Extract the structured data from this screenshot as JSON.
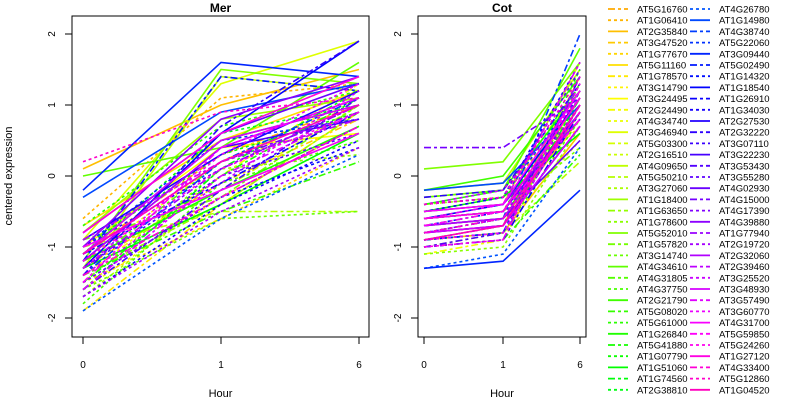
{
  "chart_data": {
    "type": "line",
    "ylabel": "centered expression",
    "ylim": [
      -2.2,
      2.3
    ],
    "yticks": [
      -2,
      -1,
      0,
      1,
      2
    ],
    "grid": false,
    "legend_placement": "right",
    "panels": [
      {
        "title": "Mer",
        "xlabel": "Hour",
        "categories": [
          "0",
          "1",
          "6"
        ]
      },
      {
        "title": "Cot",
        "xlabel": "Hour",
        "categories": [
          "0",
          "1",
          "6"
        ]
      }
    ],
    "series": [
      {
        "name": "AT5G16760",
        "mer": [
          -1.1,
          0.3,
          1.0
        ],
        "cot": [
          -0.8,
          -0.6,
          0.9
        ]
      },
      {
        "name": "AT1G06410",
        "mer": [
          -0.6,
          1.1,
          1.3
        ],
        "cot": [
          -0.5,
          -0.3,
          1.1
        ]
      },
      {
        "name": "AT2G35840",
        "mer": [
          0.1,
          1.0,
          1.5
        ],
        "cot": [
          -0.9,
          -0.8,
          0.6
        ]
      },
      {
        "name": "AT3G47520",
        "mer": [
          -1.3,
          -0.1,
          0.8
        ],
        "cot": [
          -1.0,
          -0.9,
          1.2
        ]
      },
      {
        "name": "AT1G77670",
        "mer": [
          -1.5,
          -0.6,
          0.4
        ],
        "cot": [
          -0.6,
          -0.5,
          1.3
        ]
      },
      {
        "name": "AT5G11160",
        "mer": [
          -0.7,
          0.5,
          1.2
        ],
        "cot": [
          -0.7,
          -0.6,
          0.8
        ]
      },
      {
        "name": "AT1G78570",
        "mer": [
          -1.9,
          -0.4,
          0.9
        ],
        "cot": [
          -0.9,
          -0.7,
          1.0
        ]
      },
      {
        "name": "AT3G14790",
        "mer": [
          -1.2,
          0.2,
          1.1
        ],
        "cot": [
          -0.4,
          -0.3,
          0.7
        ]
      },
      {
        "name": "AT3G24495",
        "mer": [
          -1.0,
          0.4,
          0.6
        ],
        "cot": [
          -0.8,
          -0.7,
          1.4
        ]
      },
      {
        "name": "AT2G24490",
        "mer": [
          -1.4,
          0.0,
          1.3
        ],
        "cot": [
          -1.1,
          -0.9,
          0.9
        ]
      },
      {
        "name": "AT4G34740",
        "mer": [
          -1.6,
          -0.3,
          0.7
        ],
        "cot": [
          -0.3,
          -0.2,
          1.0
        ]
      },
      {
        "name": "AT3G46940",
        "mer": [
          -0.9,
          1.3,
          1.9
        ],
        "cot": [
          -0.5,
          -0.4,
          1.6
        ]
      },
      {
        "name": "AT5G03300",
        "mer": [
          -1.2,
          -0.2,
          1.0
        ],
        "cot": [
          -0.7,
          -0.6,
          1.1
        ]
      },
      {
        "name": "AT2G16510",
        "mer": [
          -1.1,
          0.6,
          1.4
        ],
        "cot": [
          -0.8,
          -0.7,
          0.5
        ]
      },
      {
        "name": "AT4G09650",
        "mer": [
          -1.3,
          1.4,
          1.2
        ],
        "cot": [
          -0.2,
          -0.1,
          1.5
        ]
      },
      {
        "name": "AT5G50210",
        "mer": [
          -1.0,
          -0.5,
          -0.5
        ],
        "cot": [
          -1.0,
          -0.8,
          0.2
        ]
      },
      {
        "name": "AT3G27060",
        "mer": [
          -1.7,
          -0.2,
          0.6
        ],
        "cot": [
          -0.6,
          -0.4,
          1.2
        ]
      },
      {
        "name": "AT1G18400",
        "mer": [
          -0.8,
          0.8,
          1.1
        ],
        "cot": [
          -0.9,
          -0.7,
          0.9
        ]
      },
      {
        "name": "AT1G63650",
        "mer": [
          -1.4,
          -0.4,
          0.9
        ],
        "cot": [
          -0.4,
          -0.3,
          1.3
        ]
      },
      {
        "name": "AT1G78600",
        "mer": [
          -1.5,
          0.1,
          0.3
        ],
        "cot": [
          -1.1,
          -1.0,
          0.7
        ]
      },
      {
        "name": "AT5G52010",
        "mer": [
          -1.2,
          1.5,
          1.3
        ],
        "cot": [
          0.1,
          0.2,
          1.6
        ]
      },
      {
        "name": "AT1G57820",
        "mer": [
          -0.9,
          -0.3,
          1.0
        ],
        "cot": [
          -0.7,
          -0.5,
          0.4
        ]
      },
      {
        "name": "AT3G14740",
        "mer": [
          -1.6,
          -0.6,
          -0.5
        ],
        "cot": [
          -0.5,
          -0.4,
          1.0
        ]
      },
      {
        "name": "AT4G34610",
        "mer": [
          0.0,
          0.4,
          1.6
        ],
        "cot": [
          -0.3,
          -0.2,
          1.8
        ]
      },
      {
        "name": "AT4G31805",
        "mer": [
          -1.3,
          0.2,
          0.8
        ],
        "cot": [
          -0.8,
          -0.6,
          1.1
        ]
      },
      {
        "name": "AT4G37750",
        "mer": [
          -1.8,
          -0.1,
          0.5
        ],
        "cot": [
          -0.9,
          -0.8,
          0.8
        ]
      },
      {
        "name": "AT2G21790",
        "mer": [
          -1.1,
          0.5,
          1.0
        ],
        "cot": [
          -0.2,
          0.0,
          1.4
        ]
      },
      {
        "name": "AT5G08020",
        "mer": [
          -1.4,
          -0.5,
          0.2
        ],
        "cot": [
          -1.0,
          -0.9,
          0.3
        ]
      },
      {
        "name": "AT5G61000",
        "mer": [
          -0.7,
          0.7,
          1.2
        ],
        "cot": [
          -0.6,
          -0.5,
          0.9
        ]
      },
      {
        "name": "AT1G26840",
        "mer": [
          -1.2,
          -0.2,
          0.7
        ],
        "cot": [
          -0.4,
          -0.2,
          1.2
        ]
      },
      {
        "name": "AT5G41880",
        "mer": [
          -1.5,
          0.0,
          1.1
        ],
        "cot": [
          -0.7,
          -0.6,
          1.0
        ]
      },
      {
        "name": "AT1G07790",
        "mer": [
          -1.0,
          0.3,
          0.9
        ],
        "cot": [
          -0.8,
          -0.7,
          1.5
        ]
      },
      {
        "name": "AT1G51060",
        "mer": [
          -1.3,
          -0.4,
          0.6
        ],
        "cot": [
          -0.5,
          -0.3,
          0.6
        ]
      },
      {
        "name": "AT1G74560",
        "mer": [
          -1.6,
          0.1,
          1.2
        ],
        "cot": [
          -0.9,
          -0.8,
          1.1
        ]
      },
      {
        "name": "AT2G38810",
        "mer": [
          -1.1,
          0.6,
          1.0
        ],
        "cot": [
          -0.6,
          -0.5,
          1.3
        ]
      },
      {
        "name": "AT4G26780",
        "mer": [
          -1.9,
          -0.6,
          0.3
        ],
        "cot": [
          -1.3,
          -1.1,
          0.4
        ]
      },
      {
        "name": "AT1G14980",
        "mer": [
          -0.3,
          0.9,
          1.3
        ],
        "cot": [
          -0.2,
          -0.1,
          1.0
        ]
      },
      {
        "name": "AT4G38740",
        "mer": [
          -1.4,
          0.2,
          1.1
        ],
        "cot": [
          -0.8,
          -0.6,
          2.0
        ]
      },
      {
        "name": "AT5G22060",
        "mer": [
          -1.0,
          0.5,
          0.8
        ],
        "cot": [
          -0.4,
          -0.3,
          1.2
        ]
      },
      {
        "name": "AT3G09440",
        "mer": [
          -0.2,
          1.6,
          1.4
        ],
        "cot": [
          -1.3,
          -1.2,
          -0.2
        ]
      },
      {
        "name": "AT5G02490",
        "mer": [
          -1.2,
          1.4,
          1.2
        ],
        "cot": [
          -0.9,
          -0.8,
          1.4
        ]
      },
      {
        "name": "AT1G14320",
        "mer": [
          -1.5,
          -0.3,
          0.4
        ],
        "cot": [
          -0.7,
          -0.5,
          0.8
        ]
      },
      {
        "name": "AT1G18540",
        "mer": [
          -1.3,
          0.6,
          1.9
        ],
        "cot": [
          -0.6,
          -0.4,
          1.1
        ]
      },
      {
        "name": "AT1G26910",
        "mer": [
          -1.1,
          -0.1,
          0.9
        ],
        "cot": [
          -1.0,
          -0.9,
          0.9
        ]
      },
      {
        "name": "AT1G34030",
        "mer": [
          -1.7,
          -0.4,
          0.5
        ],
        "cot": [
          -0.5,
          -0.3,
          1.6
        ]
      },
      {
        "name": "AT2G27530",
        "mer": [
          -0.9,
          0.3,
          1.2
        ],
        "cot": [
          -0.8,
          -0.7,
          0.7
        ]
      },
      {
        "name": "AT2G32220",
        "mer": [
          -1.4,
          0.7,
          1.9
        ],
        "cot": [
          -0.3,
          -0.2,
          1.3
        ]
      },
      {
        "name": "AT3G07110",
        "mer": [
          -1.0,
          0.1,
          1.0
        ],
        "cot": [
          -0.9,
          -0.8,
          1.2
        ]
      },
      {
        "name": "AT3G22230",
        "mer": [
          -1.2,
          0.4,
          0.8
        ],
        "cot": [
          -0.6,
          -0.5,
          0.9
        ]
      },
      {
        "name": "AT3G53430",
        "mer": [
          -1.6,
          -0.2,
          1.1
        ],
        "cot": [
          -1.0,
          -0.8,
          1.0
        ]
      },
      {
        "name": "AT3G55280",
        "mer": [
          -1.3,
          0.0,
          0.6
        ],
        "cot": [
          -0.4,
          -0.3,
          1.5
        ]
      },
      {
        "name": "AT4G02930",
        "mer": [
          -0.8,
          0.6,
          1.3
        ],
        "cot": [
          -0.7,
          -0.6,
          0.5
        ]
      },
      {
        "name": "AT4G15000",
        "mer": [
          -1.1,
          0.2,
          0.9
        ],
        "cot": [
          0.4,
          0.4,
          1.1
        ]
      },
      {
        "name": "AT4G17390",
        "mer": [
          -1.5,
          -0.3,
          0.7
        ],
        "cot": [
          -0.8,
          -0.6,
          1.2
        ]
      },
      {
        "name": "AT4G39880",
        "mer": [
          -1.0,
          0.8,
          1.4
        ],
        "cot": [
          -0.5,
          -0.4,
          0.8
        ]
      },
      {
        "name": "AT1G77940",
        "mer": [
          -1.3,
          0.1,
          1.0
        ],
        "cot": [
          -0.9,
          -0.7,
          1.3
        ]
      },
      {
        "name": "AT2G19720",
        "mer": [
          -1.7,
          -0.5,
          0.4
        ],
        "cot": [
          -0.6,
          -0.5,
          1.0
        ]
      },
      {
        "name": "AT2G32060",
        "mer": [
          -1.2,
          0.4,
          1.1
        ],
        "cot": [
          -0.7,
          -0.6,
          0.9
        ]
      },
      {
        "name": "AT2G39460",
        "mer": [
          -0.9,
          0.2,
          0.8
        ],
        "cot": [
          -1.0,
          -0.9,
          1.4
        ]
      },
      {
        "name": "AT3G25520",
        "mer": [
          -1.4,
          -0.1,
          1.2
        ],
        "cot": [
          -0.4,
          -0.2,
          1.1
        ]
      },
      {
        "name": "AT3G48930",
        "mer": [
          -1.1,
          0.5,
          1.0
        ],
        "cot": [
          -0.8,
          -0.7,
          0.7
        ]
      },
      {
        "name": "AT3G57490",
        "mer": [
          -1.6,
          0.0,
          0.9
        ],
        "cot": [
          -0.6,
          -0.4,
          1.6
        ]
      },
      {
        "name": "AT3G60770",
        "mer": [
          -1.3,
          0.3,
          1.3
        ],
        "cot": [
          -0.9,
          -0.8,
          1.0
        ]
      },
      {
        "name": "AT4G31700",
        "mer": [
          -1.0,
          -0.2,
          0.6
        ],
        "cot": [
          -0.5,
          -0.4,
          1.2
        ]
      },
      {
        "name": "AT5G59850",
        "mer": [
          -1.5,
          0.4,
          1.1
        ],
        "cot": [
          -0.7,
          -0.5,
          0.8
        ]
      },
      {
        "name": "AT5G24260",
        "mer": [
          -1.2,
          0.1,
          0.9
        ],
        "cot": [
          -1.0,
          -0.9,
          1.3
        ]
      },
      {
        "name": "AT1G27120",
        "mer": [
          -0.8,
          0.6,
          1.4
        ],
        "cot": [
          -0.6,
          -0.5,
          1.1
        ]
      },
      {
        "name": "AT4G33400",
        "mer": [
          -1.4,
          -0.3,
          0.7
        ],
        "cot": [
          -0.8,
          -0.6,
          0.9
        ]
      },
      {
        "name": "AT5G12860",
        "mer": [
          0.2,
          0.9,
          1.1
        ],
        "cot": [
          -0.4,
          -0.3,
          1.4
        ]
      },
      {
        "name": "AT1G04520",
        "mer": [
          -1.1,
          0.2,
          1.0
        ],
        "cot": [
          -0.9,
          -0.7,
          1.0
        ]
      }
    ]
  }
}
